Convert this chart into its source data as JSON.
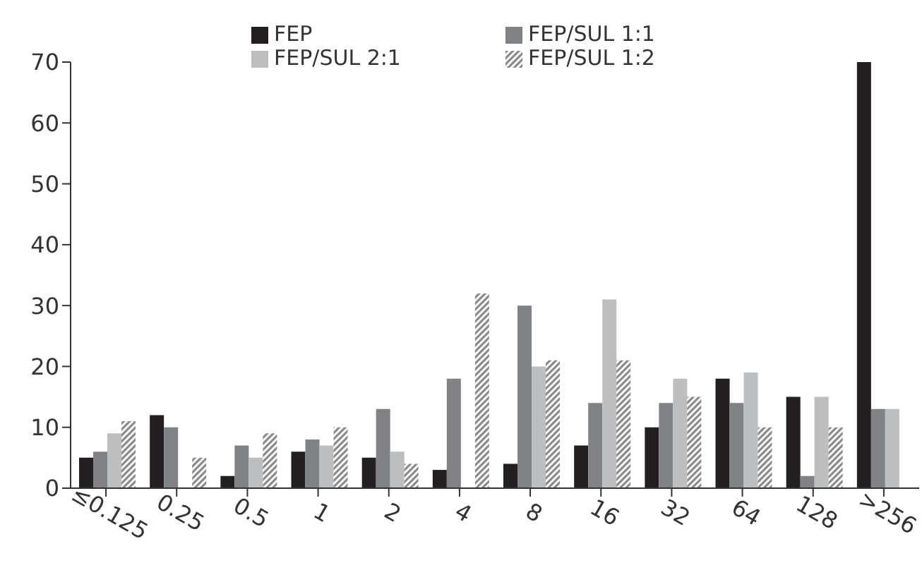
{
  "chart_data": {
    "type": "bar",
    "categories": [
      "≤0.125",
      "0.25",
      "0.5",
      "1",
      "2",
      "4",
      "8",
      "16",
      "32",
      "64",
      "128",
      ">256"
    ],
    "series": [
      {
        "name": "FEP",
        "color": "#231f20",
        "values": [
          5,
          12,
          2,
          6,
          5,
          3,
          4,
          7,
          10,
          18,
          15,
          70
        ]
      },
      {
        "name": "FEP/SUL 1:1",
        "color": "#808285",
        "values": [
          6,
          10,
          7,
          8,
          13,
          18,
          30,
          14,
          14,
          14,
          2,
          13
        ]
      },
      {
        "name": "FEP/SUL 2:1",
        "color": "#bcbec0",
        "values": [
          9,
          0,
          5,
          7,
          6,
          0,
          20,
          31,
          18,
          19,
          15,
          13
        ]
      },
      {
        "name": "FEP/SUL 1:2",
        "color": "#8a8a8a",
        "values": [
          11,
          5,
          9,
          10,
          4,
          32,
          21,
          21,
          15,
          10,
          10,
          0
        ]
      }
    ],
    "ylim": [
      0,
      70
    ],
    "yticks": [
      0,
      10,
      20,
      30,
      40,
      50,
      60,
      70
    ],
    "grid": false,
    "legend": "top"
  }
}
